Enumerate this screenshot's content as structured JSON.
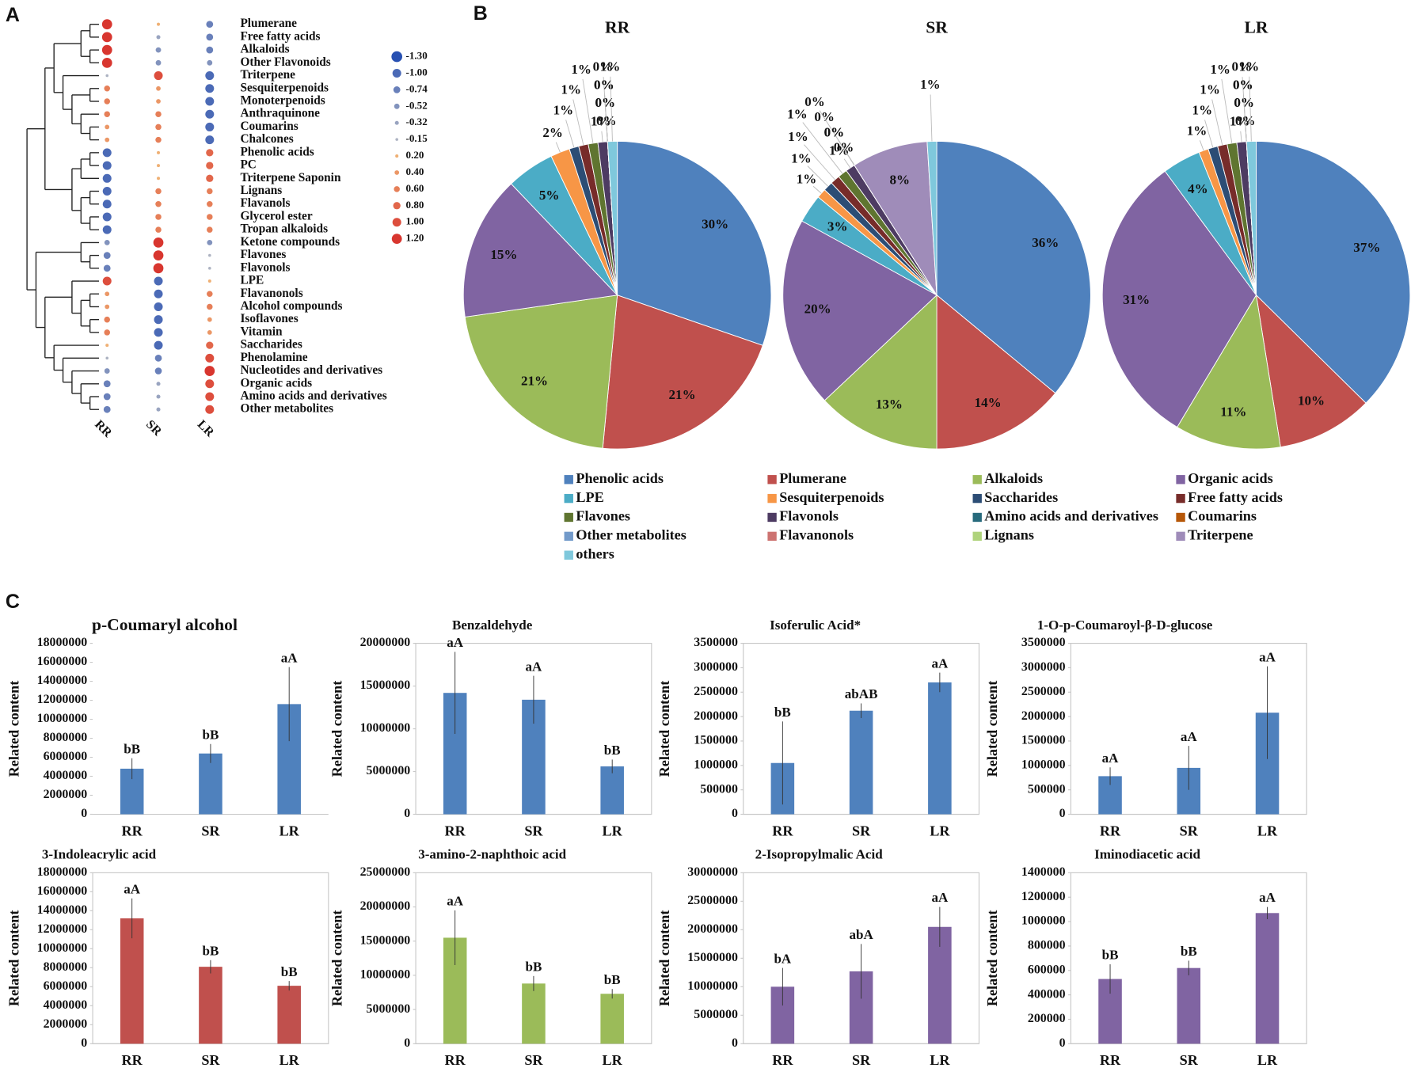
{
  "panel_labels": [
    "A",
    "B",
    "C"
  ],
  "chart_data": [
    {
      "type": "dot",
      "rows": [
        "Plumerane",
        "Free fatty acids",
        "Alkaloids",
        "Other Flavonoids",
        "Triterpene",
        "Sesquiterpenoids",
        "Monoterpenoids",
        "Anthraquinone",
        "Coumarins",
        "Chalcones",
        "Phenolic acids",
        "PC",
        "Triterpene Saponin",
        "Lignans",
        "Flavanols",
        "Glycerol ester",
        "Tropan alkaloids",
        "Ketone compounds",
        "Flavones",
        "Flavonols",
        "LPE",
        "Flavanonols",
        "Alcohol compounds",
        "Isoflavones",
        "Vitamin",
        "Saccharides",
        "Phenolamine",
        "Nucleotides and derivatives",
        "Organic acids",
        "Amino acids and derivatives",
        "Other metabolites"
      ],
      "series": [
        {
          "name": "RR",
          "values": [
            1.2,
            1.2,
            1.2,
            1.2,
            -0.15,
            0.6,
            0.6,
            0.6,
            0.4,
            0.4,
            -1.0,
            -1.0,
            -1.0,
            -1.0,
            -1.0,
            -1.0,
            -1.0,
            -0.52,
            -0.74,
            -0.74,
            1.0,
            0.4,
            0.4,
            0.6,
            0.6,
            0.2,
            -0.15,
            -0.52,
            -0.74,
            -0.74,
            -0.74
          ]
        },
        {
          "name": "SR",
          "values": [
            0.2,
            -0.32,
            -0.52,
            -0.52,
            1.0,
            0.4,
            0.4,
            0.6,
            0.6,
            0.6,
            0.2,
            0.2,
            0.2,
            0.6,
            0.6,
            0.6,
            0.6,
            1.2,
            1.2,
            1.2,
            -1.0,
            -1.0,
            -1.0,
            -1.0,
            -1.0,
            -1.0,
            -0.74,
            -0.74,
            -0.32,
            -0.32,
            -0.32
          ]
        },
        {
          "name": "LR",
          "values": [
            -0.74,
            -0.74,
            -0.74,
            -0.52,
            -1.0,
            -1.0,
            -1.0,
            -1.0,
            -1.0,
            -1.0,
            0.8,
            0.8,
            0.8,
            0.6,
            0.6,
            0.6,
            0.6,
            -0.52,
            -0.15,
            -0.15,
            0.2,
            0.6,
            0.6,
            0.4,
            0.4,
            0.8,
            1.0,
            1.2,
            1.0,
            1.0,
            1.0
          ]
        }
      ],
      "legend_ticks": [
        {
          "value": -1.3,
          "label": "-1.30"
        },
        {
          "value": -1.0,
          "label": "-1.00"
        },
        {
          "value": -0.74,
          "label": "-0.74"
        },
        {
          "value": -0.52,
          "label": "-0.52"
        },
        {
          "value": -0.32,
          "label": "-0.32"
        },
        {
          "value": -0.15,
          "label": "-0.15"
        },
        {
          "value": 0.2,
          "label": "0.20"
        },
        {
          "value": 0.4,
          "label": "0.40"
        },
        {
          "value": 0.6,
          "label": "0.60"
        },
        {
          "value": 0.8,
          "label": "0.80"
        },
        {
          "value": 1.0,
          "label": "1.00"
        },
        {
          "value": 1.2,
          "label": "1.20"
        }
      ]
    },
    {
      "type": "pie",
      "categories": [
        "Phenolic acids",
        "Plumerane",
        "Alkaloids",
        "Organic acids",
        "LPE",
        "Sesquiterpenoids",
        "Saccharides",
        "Free fatty acids",
        "Flavones",
        "Flavonols",
        "Amino acids and derivatives",
        "Coumarins",
        "Other metabolites",
        "Flavanonols",
        "Lignans",
        "Triterpene",
        "others"
      ],
      "colors": [
        "#4f81bd",
        "#c0504d",
        "#9bbb59",
        "#8064a2",
        "#4bacc6",
        "#f79646",
        "#2c4d75",
        "#772c2a",
        "#5f7530",
        "#4d3b62",
        "#276a7c",
        "#b65708",
        "#729aca",
        "#cd7371",
        "#afd37c",
        "#9f8cb9",
        "#7fc8dc"
      ],
      "series": [
        {
          "name": "RR",
          "values": [
            30,
            21,
            21,
            15,
            5,
            2,
            1,
            1,
            1,
            1,
            0,
            0,
            0,
            0,
            0,
            0,
            1
          ],
          "value_labels": [
            "30%",
            "21%",
            "21%",
            "15%",
            "5%",
            "2%",
            "1%",
            "1%",
            "1%",
            "1%",
            "0%",
            "0%",
            "0%",
            "0%",
            "0%",
            "0%",
            "1%"
          ]
        },
        {
          "name": "SR",
          "values": [
            36,
            14,
            13,
            20,
            3,
            1,
            1,
            1,
            1,
            1,
            0,
            0,
            0,
            0,
            0,
            8,
            1
          ],
          "value_labels": [
            "36%",
            "14%",
            "13%",
            "20%",
            "3%",
            "1%",
            "1%",
            "1%",
            "1%",
            "1%",
            "0%",
            "0%",
            "0%",
            "0%",
            "0%",
            "8%",
            "1%"
          ]
        },
        {
          "name": "LR",
          "values": [
            37,
            10,
            11,
            31,
            4,
            1,
            1,
            1,
            1,
            1,
            0,
            0,
            0,
            0,
            0,
            0,
            1
          ],
          "value_labels": [
            "37%",
            "10%",
            "11%",
            "31%",
            "4%",
            "1%",
            "1%",
            "1%",
            "1%",
            "1%",
            "0%",
            "0%",
            "0%",
            "0%",
            "0%",
            "0%",
            "1%"
          ]
        }
      ]
    },
    {
      "type": "bar",
      "title": "p-Coumaryl alcohol",
      "ylabel": "Related content",
      "categories": [
        "RR",
        "SR",
        "LR"
      ],
      "values": [
        4800000,
        6400000,
        11600000
      ],
      "errors": [
        1100000,
        1000000,
        3900000
      ],
      "annotations": [
        "bB",
        "bB",
        "aA"
      ],
      "color": "#4f81bd",
      "ylim": [
        0,
        18000000
      ],
      "yticks": [
        0,
        2000000,
        4000000,
        6000000,
        8000000,
        10000000,
        12000000,
        14000000,
        16000000,
        18000000
      ]
    },
    {
      "type": "bar",
      "title": "Benzaldehyde",
      "ylabel": "Related content",
      "categories": [
        "RR",
        "SR",
        "LR"
      ],
      "values": [
        14200000,
        13400000,
        5600000
      ],
      "errors": [
        4800000,
        2800000,
        800000
      ],
      "annotations": [
        "aA",
        "aA",
        "bB"
      ],
      "color": "#4f81bd",
      "ylim": [
        0,
        20000000
      ],
      "yticks": [
        0,
        5000000,
        10000000,
        15000000,
        20000000
      ]
    },
    {
      "type": "bar",
      "title": "Isoferulic Acid*",
      "ylabel": "Related content",
      "categories": [
        "RR",
        "SR",
        "LR"
      ],
      "values": [
        1050000,
        2120000,
        2700000
      ],
      "errors": [
        850000,
        150000,
        200000
      ],
      "annotations": [
        "bB",
        "abAB",
        "aA"
      ],
      "color": "#4f81bd",
      "ylim": [
        0,
        3500000
      ],
      "yticks": [
        0,
        500000,
        1000000,
        1500000,
        2000000,
        2500000,
        3000000,
        3500000
      ]
    },
    {
      "type": "bar",
      "title": "1-O-p-Coumaroyl-β-D-glucose",
      "ylabel": "Related content",
      "categories": [
        "RR",
        "SR",
        "LR"
      ],
      "values": [
        780000,
        950000,
        2080000
      ],
      "errors": [
        180000,
        450000,
        950000
      ],
      "annotations": [
        "aA",
        "aA",
        "aA"
      ],
      "color": "#4f81bd",
      "ylim": [
        0,
        3500000
      ],
      "yticks": [
        0,
        500000,
        1000000,
        1500000,
        2000000,
        2500000,
        3000000,
        3500000
      ]
    },
    {
      "type": "bar",
      "title": "3-Indoleacrylic acid",
      "ylabel": "Related content",
      "categories": [
        "RR",
        "SR",
        "LR"
      ],
      "values": [
        13200000,
        8100000,
        6100000
      ],
      "errors": [
        2100000,
        700000,
        500000
      ],
      "annotations": [
        "aA",
        "bB",
        "bB"
      ],
      "color": "#c0504d",
      "ylim": [
        0,
        18000000
      ],
      "yticks": [
        0,
        2000000,
        4000000,
        6000000,
        8000000,
        10000000,
        12000000,
        14000000,
        16000000,
        18000000
      ]
    },
    {
      "type": "bar",
      "title": "3-amino-2-naphthoic acid",
      "ylabel": "Related content",
      "categories": [
        "RR",
        "SR",
        "LR"
      ],
      "values": [
        15500000,
        8800000,
        7300000
      ],
      "errors": [
        4000000,
        1100000,
        700000
      ],
      "annotations": [
        "aA",
        "bB",
        "bB"
      ],
      "color": "#9bbb59",
      "ylim": [
        0,
        25000000
      ],
      "yticks": [
        0,
        5000000,
        10000000,
        15000000,
        20000000,
        25000000
      ]
    },
    {
      "type": "bar",
      "title": "2-Isopropylmalic Acid",
      "ylabel": "Related content",
      "categories": [
        "RR",
        "SR",
        "LR"
      ],
      "values": [
        10000000,
        12700000,
        20500000
      ],
      "errors": [
        3300000,
        4800000,
        3500000
      ],
      "annotations": [
        "bA",
        "abA",
        "aA"
      ],
      "color": "#8064a2",
      "ylim": [
        0,
        30000000
      ],
      "yticks": [
        0,
        5000000,
        10000000,
        15000000,
        20000000,
        25000000,
        30000000
      ]
    },
    {
      "type": "bar",
      "title": "Iminodiacetic acid",
      "ylabel": "Related content",
      "categories": [
        "RR",
        "SR",
        "LR"
      ],
      "values": [
        530000,
        620000,
        1070000
      ],
      "errors": [
        120000,
        60000,
        50000
      ],
      "annotations": [
        "bB",
        "bB",
        "aA"
      ],
      "color": "#8064a2",
      "ylim": [
        0,
        1400000
      ],
      "yticks": [
        0,
        200000,
        400000,
        600000,
        800000,
        1000000,
        1200000,
        1400000
      ]
    }
  ]
}
